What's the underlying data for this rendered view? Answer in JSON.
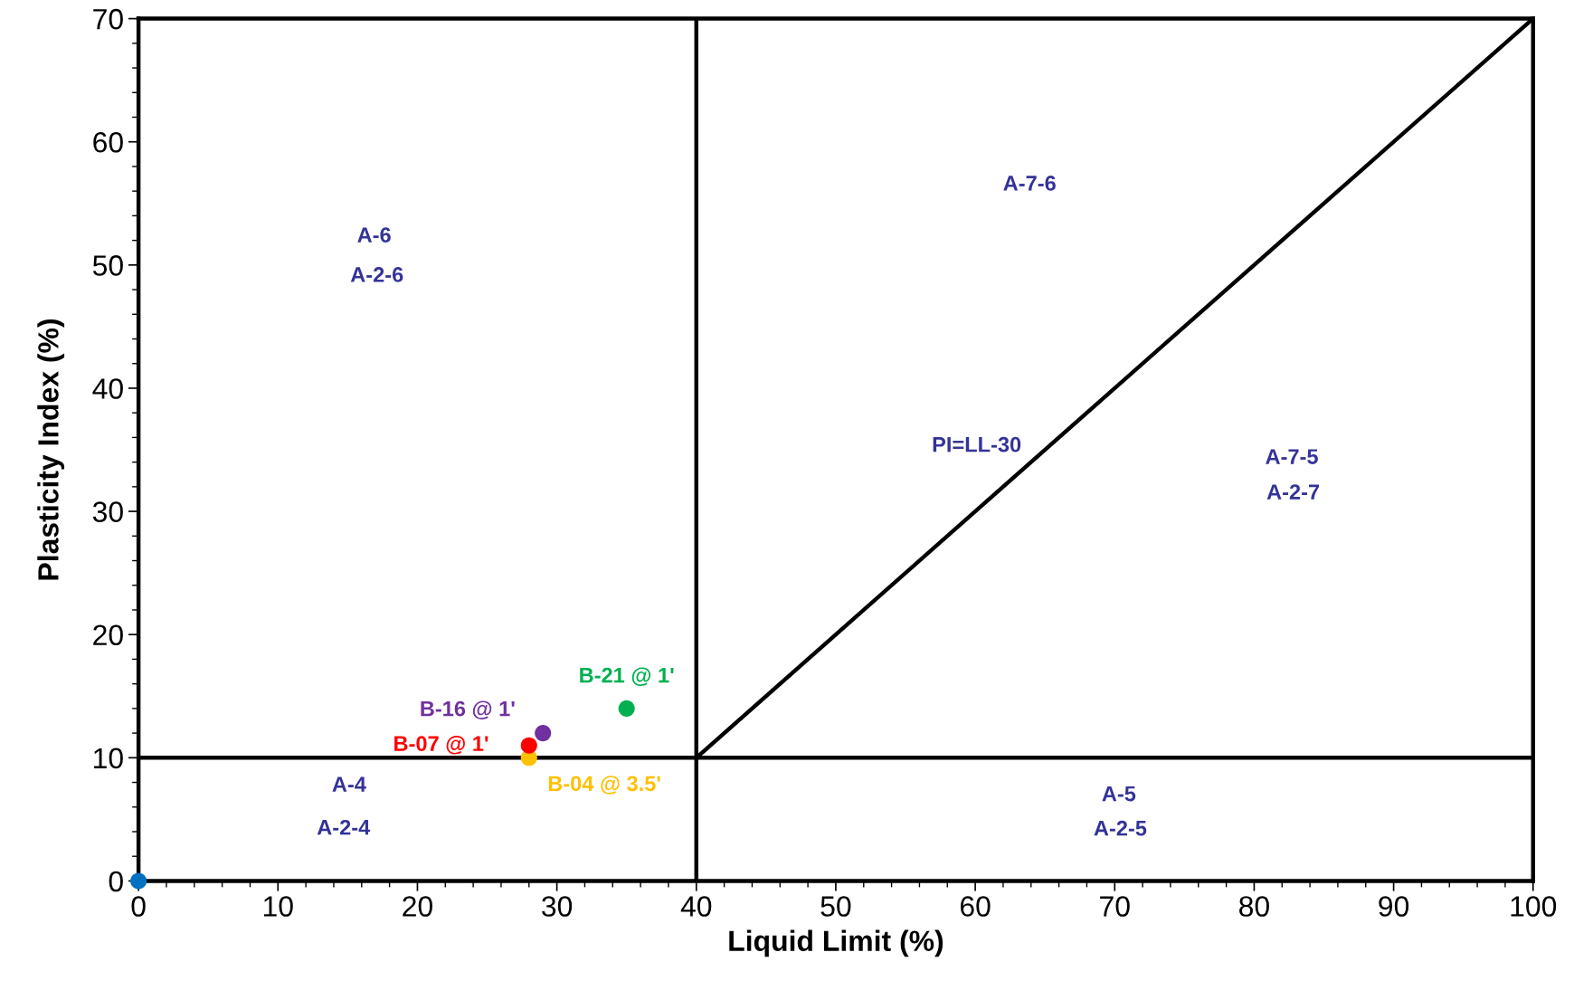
{
  "chart_data": {
    "type": "scatter",
    "xlabel": "Liquid Limit (%)",
    "ylabel": "Plasticity Index (%)",
    "xlim": [
      0,
      100
    ],
    "ylim": [
      0,
      70
    ],
    "xticks": [
      0,
      10,
      20,
      30,
      40,
      50,
      60,
      70,
      80,
      90,
      100
    ],
    "yticks": [
      0,
      10,
      20,
      30,
      40,
      50,
      60,
      70
    ],
    "grid": false,
    "legend": false,
    "marker": "circle",
    "series": [
      {
        "type": "line",
        "marker": "none",
        "color": "#000000",
        "x": [
          40,
          40
        ],
        "values": [
          0,
          70
        ]
      },
      {
        "type": "line",
        "marker": "none",
        "color": "#000000",
        "x": [
          0,
          100
        ],
        "values": [
          10,
          10
        ]
      },
      {
        "type": "line",
        "marker": "none",
        "color": "#000000",
        "x": [
          40,
          100
        ],
        "values": [
          10,
          70
        ]
      },
      {
        "color": "#0070c0",
        "x": [
          0
        ],
        "values": [
          0
        ]
      },
      {
        "name": "B-04 @ 3.5'",
        "color": "#ffc000",
        "x": [
          28
        ],
        "values": [
          10
        ]
      },
      {
        "name": "B-07 @ 1'",
        "color": "#ff0000",
        "x": [
          28
        ],
        "values": [
          11
        ]
      },
      {
        "name": "B-16 @ 1'",
        "color": "#7030a0",
        "x": [
          29
        ],
        "values": [
          12
        ]
      },
      {
        "name": "B-21 @ 1'",
        "color": "#00b050",
        "x": [
          35
        ],
        "values": [
          14
        ]
      }
    ],
    "annotations": [
      "A-6",
      "A-2-6",
      "A-7-6",
      "PI=LL-30",
      "A-7-5",
      "A-2-7",
      "A-4",
      "A-2-4",
      "A-5",
      "A-2-5"
    ]
  }
}
